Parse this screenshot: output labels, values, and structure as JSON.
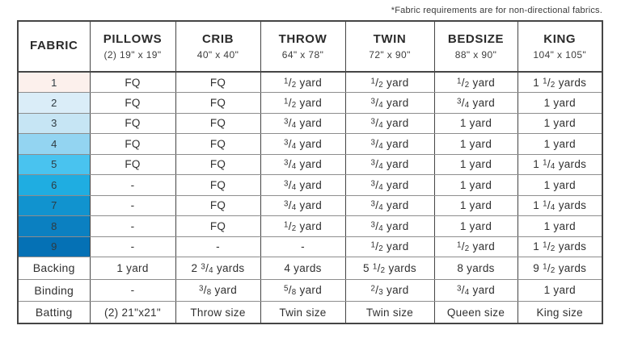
{
  "disclaimer": "*Fabric requirements are for non-directional fabrics.",
  "table": {
    "columns": [
      {
        "label": "FABRIC",
        "dimensions": ""
      },
      {
        "label": "PILLOWS",
        "dimensions": "(2) 19\" x 19\""
      },
      {
        "label": "CRIB",
        "dimensions": "40\" x 40\""
      },
      {
        "label": "THROW",
        "dimensions": "64\" x 78\""
      },
      {
        "label": "TWIN",
        "dimensions": "72\" x 90\""
      },
      {
        "label": "BEDSIZE",
        "dimensions": "88\" x 90\""
      },
      {
        "label": "KING",
        "dimensions": "104\" x 105\""
      }
    ],
    "fabric_rows": [
      {
        "fabric": "1",
        "swatch_color": "#fcf0ec",
        "values": [
          "FQ",
          "FQ",
          "1/2 yard",
          "1/2 yard",
          "1/2 yard",
          "1 1/2 yards"
        ]
      },
      {
        "fabric": "2",
        "swatch_color": "#daedf8",
        "values": [
          "FQ",
          "FQ",
          "1/2 yard",
          "3/4 yard",
          "3/4 yard",
          "1 yard"
        ]
      },
      {
        "fabric": "3",
        "swatch_color": "#c6e5f4",
        "values": [
          "FQ",
          "FQ",
          "3/4 yard",
          "3/4 yard",
          "1 yard",
          "1 yard"
        ]
      },
      {
        "fabric": "4",
        "swatch_color": "#93d4f1",
        "values": [
          "FQ",
          "FQ",
          "3/4 yard",
          "3/4 yard",
          "1 yard",
          "1 yard"
        ]
      },
      {
        "fabric": "5",
        "swatch_color": "#49c3ef",
        "values": [
          "FQ",
          "FQ",
          "3/4 yard",
          "3/4 yard",
          "1 yard",
          "1 1/4 yards"
        ]
      },
      {
        "fabric": "6",
        "swatch_color": "#1fade1",
        "values": [
          "-",
          "FQ",
          "3/4 yard",
          "3/4 yard",
          "1 yard",
          "1 yard"
        ]
      },
      {
        "fabric": "7",
        "swatch_color": "#1193cf",
        "values": [
          "-",
          "FQ",
          "3/4 yard",
          "3/4 yard",
          "1 yard",
          "1 1/4 yards"
        ]
      },
      {
        "fabric": "8",
        "swatch_color": "#0b80c1",
        "values": [
          "-",
          "FQ",
          "1/2 yard",
          "3/4 yard",
          "1 yard",
          "1 yard"
        ]
      },
      {
        "fabric": "9",
        "swatch_color": "#0571b5",
        "values": [
          "-",
          "-",
          "-",
          "1/2 yard",
          "1/2 yard",
          "1 1/2 yards"
        ]
      }
    ],
    "footer_rows": [
      {
        "fabric": "Backing",
        "values": [
          "1 yard",
          "2 3/4 yards",
          "4 yards",
          "5 1/2 yards",
          "8 yards",
          "9 1/2 yards"
        ]
      },
      {
        "fabric": "Binding",
        "values": [
          "-",
          "3/8 yard",
          "5/8 yard",
          "2/3 yard",
          "3/4 yard",
          "1 yard"
        ]
      },
      {
        "fabric": "Batting",
        "values": [
          "(2) 21\"x21\"",
          "Throw size",
          "Twin size",
          "Twin size",
          "Queen size",
          "King size"
        ]
      }
    ]
  }
}
